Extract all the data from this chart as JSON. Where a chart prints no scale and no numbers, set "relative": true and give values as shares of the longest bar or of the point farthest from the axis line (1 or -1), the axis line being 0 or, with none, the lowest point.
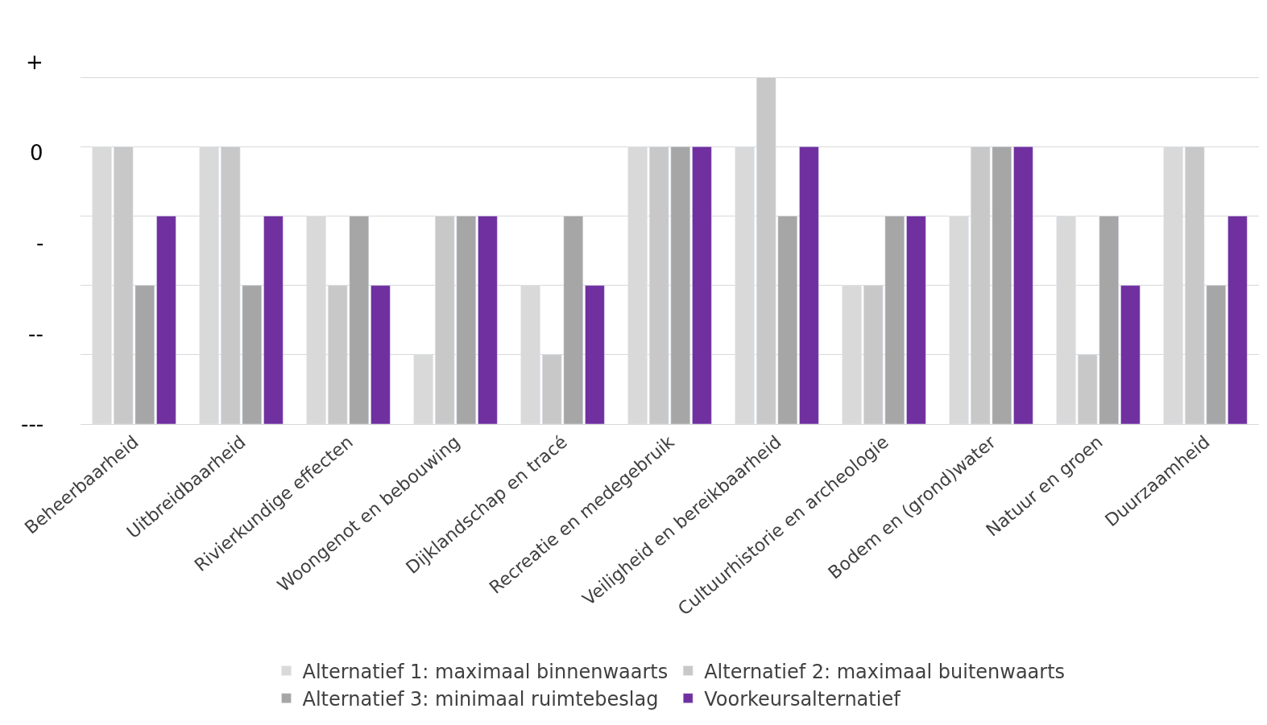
{
  "chart_data": {
    "type": "bar",
    "categories": [
      "Beheerbaarheid",
      "Uitbreidbaarheid",
      "Rivierkundige effecten",
      "Woongenot en bebouwing",
      "Dijklandschap en tracé",
      "Recreatie en medegebruik",
      "Veiligheid en bereikbaarheid",
      "Cultuurhistorie en archeologie",
      "Bodem en (grond)water",
      "Natuur en groen",
      "Duurzaamheid"
    ],
    "series": [
      {
        "name": "Alternatief 1: maximaal binnenwaarts",
        "color": "#d9d9d9",
        "values": [
          0.8,
          0.8,
          0.6,
          0.2,
          0.4,
          0.8,
          0.8,
          0.4,
          0.6,
          0.6,
          0.8
        ]
      },
      {
        "name": "Alternatief 2: maximaal buitenwaarts",
        "color": "#c8c8c8",
        "values": [
          0.8,
          0.8,
          0.4,
          0.6,
          0.2,
          0.8,
          1,
          0.4,
          0.8,
          0.2,
          0.8
        ]
      },
      {
        "name": "Alternatief 3: minimaal ruimtebeslag",
        "color": "#a6a6a6",
        "values": [
          0.4,
          0.4,
          0.6,
          0.6,
          0.6,
          0.8,
          0.6,
          0.6,
          0.8,
          0.6,
          0.4
        ]
      },
      {
        "name": "Voorkeursalternatief",
        "color": "#7030a0",
        "values": [
          0.6,
          0.6,
          0.4,
          0.6,
          0.4,
          0.8,
          0.8,
          0.6,
          0.8,
          0.4,
          0.6
        ]
      }
    ],
    "relative": true,
    "annotations": [
      "+",
      "0",
      "-",
      "--",
      "---"
    ],
    "grid": "y",
    "legend": "bottom"
  }
}
